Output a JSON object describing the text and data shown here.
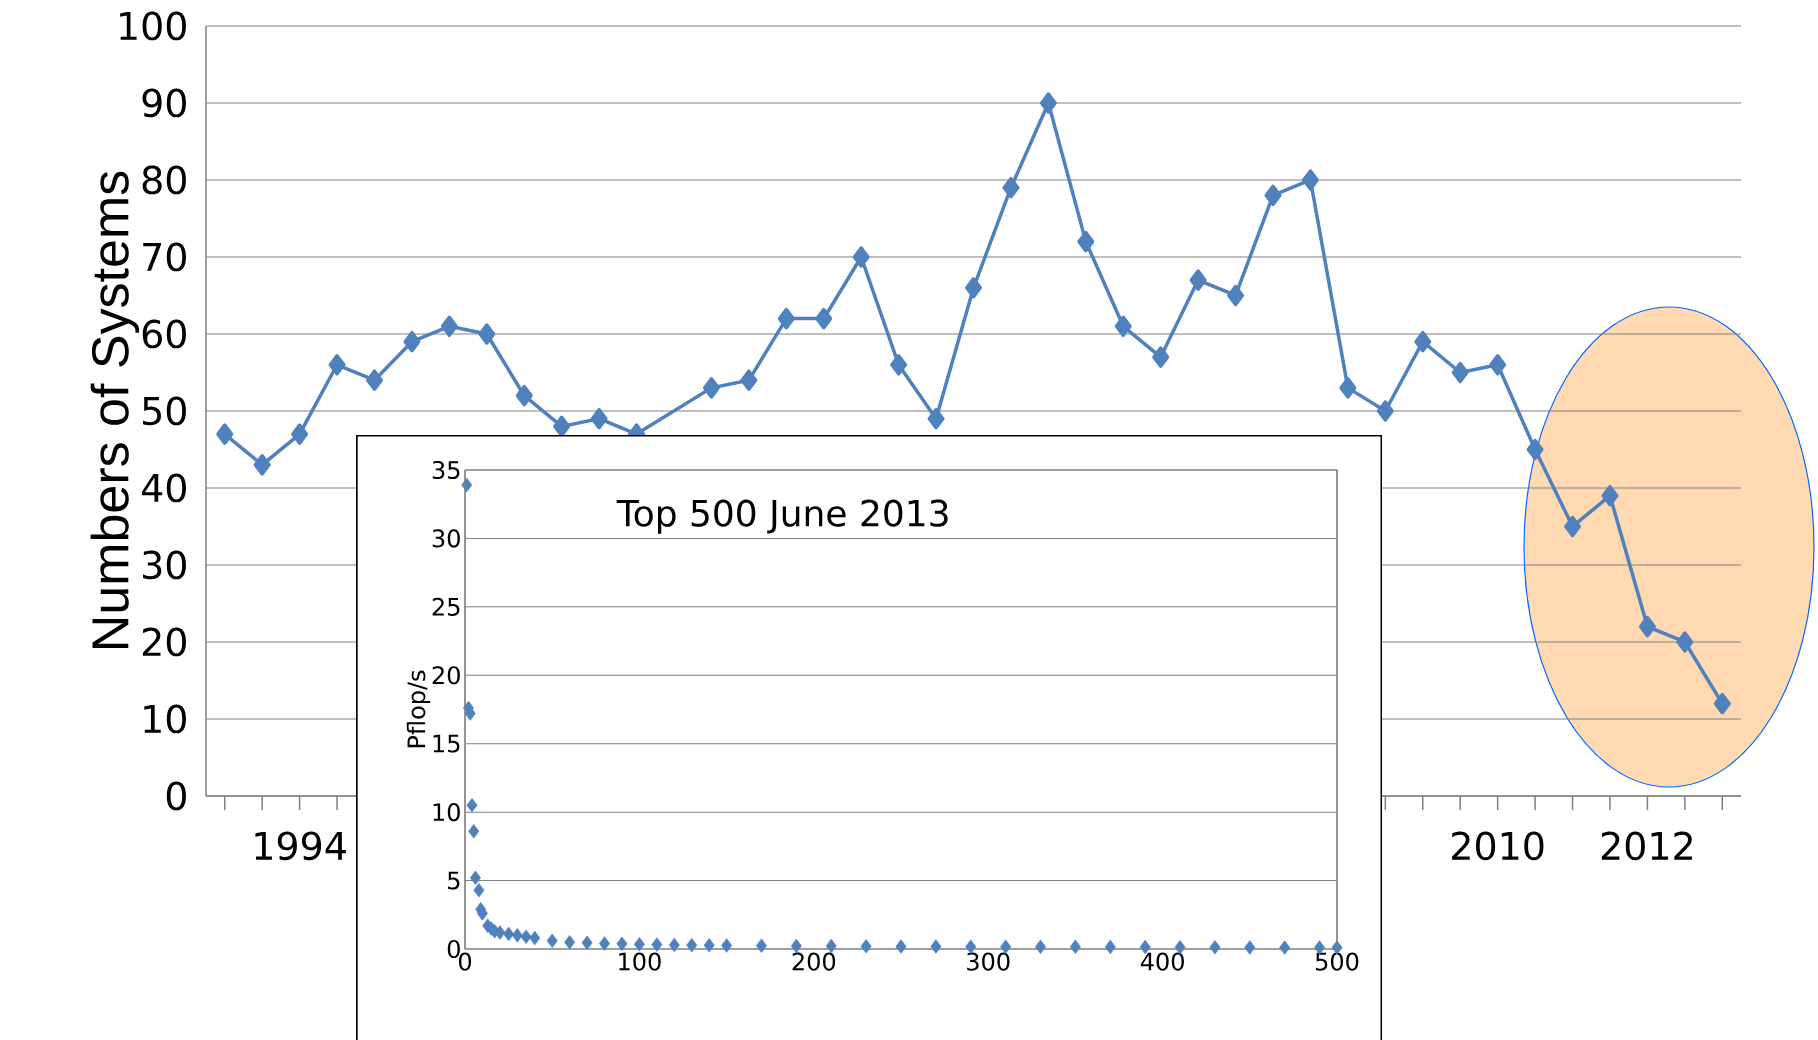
{
  "chart_data": [
    {
      "type": "line",
      "ylabel": "Numbers of Systems",
      "categories": [
        null,
        null,
        "1994",
        null,
        null,
        null,
        null,
        null,
        null,
        null,
        null,
        null,
        null,
        null,
        null,
        null,
        null,
        null,
        null,
        null,
        null,
        null,
        null,
        null,
        null,
        null,
        null,
        null,
        null,
        null,
        null,
        null,
        null,
        null,
        "2010",
        null,
        null,
        null,
        "2012",
        null,
        null
      ],
      "values": [
        47,
        43,
        47,
        56,
        54,
        59,
        61,
        60,
        52,
        48,
        49,
        47,
        null,
        53,
        54,
        62,
        62,
        70,
        56,
        49,
        66,
        79,
        90,
        72,
        61,
        57,
        67,
        65,
        78,
        80,
        53,
        50,
        59,
        55,
        56,
        45,
        35,
        39,
        22,
        20,
        12
      ],
      "color": "#4f81bd",
      "marker": "diamond",
      "grid": "y",
      "ylim": [
        0,
        100
      ],
      "yticks": [
        0,
        10,
        20,
        30,
        40,
        50,
        60,
        70,
        80,
        90,
        100
      ]
    },
    {
      "type": "scatter",
      "title": "Top 500 June 2013",
      "ylabel": "Pflop/s",
      "x": [
        1,
        2,
        3,
        4,
        5,
        6,
        8,
        9,
        10,
        13,
        15,
        17,
        20,
        25,
        30,
        35,
        40,
        50,
        60,
        70,
        80,
        90,
        100,
        110,
        120,
        130,
        140,
        150,
        170,
        190,
        210,
        230,
        250,
        270,
        290,
        310,
        330,
        350,
        370,
        390,
        410,
        430,
        450,
        470,
        490,
        500
      ],
      "values": [
        33.9,
        17.6,
        17.2,
        10.5,
        8.6,
        5.2,
        4.3,
        2.9,
        2.6,
        1.7,
        1.5,
        1.3,
        1.2,
        1.1,
        1.0,
        0.9,
        0.8,
        0.6,
        0.5,
        0.45,
        0.4,
        0.38,
        0.35,
        0.32,
        0.3,
        0.28,
        0.27,
        0.26,
        0.24,
        0.22,
        0.21,
        0.2,
        0.19,
        0.18,
        0.17,
        0.17,
        0.16,
        0.16,
        0.15,
        0.14,
        0.13,
        0.12,
        0.11,
        0.1,
        0.1,
        0.1
      ],
      "color": "#4f81bd",
      "marker": "diamond",
      "grid": "y",
      "xlim": [
        0,
        500
      ],
      "xticks": [
        0,
        100,
        200,
        300,
        400,
        500
      ],
      "ylim": [
        0,
        35
      ],
      "yticks": [
        0,
        5,
        10,
        15,
        20,
        25,
        30,
        35
      ]
    }
  ]
}
